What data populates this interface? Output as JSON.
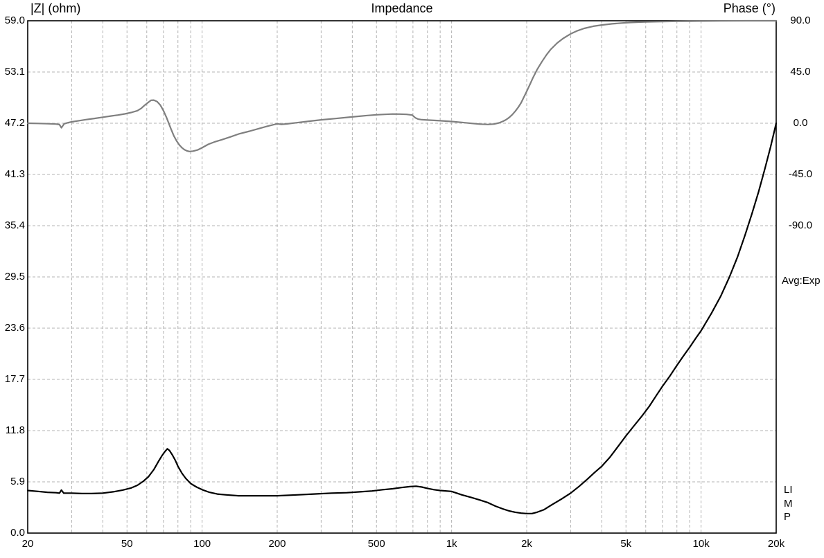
{
  "header": {
    "left_title": "|Z| (ohm)",
    "center_title": "Impedance",
    "right_title": "Phase (°)"
  },
  "right_margin": {
    "avg_label": "Avg:Exp",
    "watermark": "LIMP"
  },
  "colors": {
    "impedance_curve": "#000000",
    "phase_curve": "#7f7f7f",
    "grid": "#b3b3b3",
    "frame": "#000000",
    "background": "#ffffff",
    "text": "#000000"
  },
  "chart_data": {
    "type": "line",
    "title": "Impedance",
    "x_scale": "log",
    "grid": true,
    "freq_axis": {
      "min": 20,
      "max": 20000,
      "ticks": [
        {
          "f": 20,
          "label": "20"
        },
        {
          "f": 50,
          "label": "50"
        },
        {
          "f": 100,
          "label": "100"
        },
        {
          "f": 200,
          "label": "200"
        },
        {
          "f": 500,
          "label": "500"
        },
        {
          "f": 1000,
          "label": "1k"
        },
        {
          "f": 2000,
          "label": "2k"
        },
        {
          "f": 5000,
          "label": "5k"
        },
        {
          "f": 10000,
          "label": "10k"
        },
        {
          "f": 20000,
          "label": "20k"
        }
      ]
    },
    "z_axis": {
      "label": "|Z| (ohm)",
      "min": 0,
      "max": 59,
      "tick_labels": [
        "59.0",
        "53.1",
        "47.2",
        "41.3",
        "35.4",
        "29.5",
        "23.6",
        "17.7",
        "11.8",
        "5.9",
        "0.0"
      ]
    },
    "phase_axis": {
      "label": "Phase (°)",
      "max": 90,
      "deg_per_tick": 45,
      "tick_labels": [
        "90.0",
        "45.0",
        "0.0",
        "-45.0",
        "-90.0"
      ]
    },
    "series": [
      {
        "name": "impedance-magnitude",
        "unit": "ohm",
        "color": "#000000",
        "points": [
          [
            20,
            4.9
          ],
          [
            22,
            4.8
          ],
          [
            24,
            4.7
          ],
          [
            26,
            4.65
          ],
          [
            26.8,
            4.6
          ],
          [
            27.3,
            4.95
          ],
          [
            27.9,
            4.6
          ],
          [
            30,
            4.6
          ],
          [
            33,
            4.55
          ],
          [
            36,
            4.55
          ],
          [
            40,
            4.6
          ],
          [
            44,
            4.75
          ],
          [
            48,
            4.95
          ],
          [
            52,
            5.2
          ],
          [
            55,
            5.5
          ],
          [
            58,
            5.95
          ],
          [
            61,
            6.5
          ],
          [
            64,
            7.3
          ],
          [
            67,
            8.3
          ],
          [
            69,
            8.9
          ],
          [
            71,
            9.4
          ],
          [
            72.5,
            9.7
          ],
          [
            74,
            9.5
          ],
          [
            76,
            9.0
          ],
          [
            78,
            8.4
          ],
          [
            80,
            7.7
          ],
          [
            83,
            6.9
          ],
          [
            86,
            6.3
          ],
          [
            90,
            5.7
          ],
          [
            95,
            5.3
          ],
          [
            100,
            5.0
          ],
          [
            107,
            4.7
          ],
          [
            115,
            4.5
          ],
          [
            125,
            4.4
          ],
          [
            140,
            4.3
          ],
          [
            170,
            4.3
          ],
          [
            200,
            4.3
          ],
          [
            240,
            4.4
          ],
          [
            280,
            4.5
          ],
          [
            330,
            4.6
          ],
          [
            380,
            4.65
          ],
          [
            430,
            4.75
          ],
          [
            480,
            4.85
          ],
          [
            530,
            5.0
          ],
          [
            580,
            5.1
          ],
          [
            630,
            5.25
          ],
          [
            680,
            5.35
          ],
          [
            720,
            5.4
          ],
          [
            760,
            5.3
          ],
          [
            800,
            5.15
          ],
          [
            850,
            5.0
          ],
          [
            900,
            4.9
          ],
          [
            1000,
            4.8
          ],
          [
            1100,
            4.4
          ],
          [
            1200,
            4.1
          ],
          [
            1300,
            3.8
          ],
          [
            1400,
            3.5
          ],
          [
            1500,
            3.1
          ],
          [
            1600,
            2.8
          ],
          [
            1700,
            2.55
          ],
          [
            1800,
            2.4
          ],
          [
            1900,
            2.3
          ],
          [
            2000,
            2.25
          ],
          [
            2100,
            2.25
          ],
          [
            2200,
            2.4
          ],
          [
            2350,
            2.7
          ],
          [
            2500,
            3.2
          ],
          [
            2750,
            3.9
          ],
          [
            3000,
            4.6
          ],
          [
            3250,
            5.4
          ],
          [
            3500,
            6.2
          ],
          [
            3750,
            7.0
          ],
          [
            4000,
            7.7
          ],
          [
            4300,
            8.7
          ],
          [
            4600,
            9.8
          ],
          [
            5000,
            11.2
          ],
          [
            5400,
            12.4
          ],
          [
            5800,
            13.5
          ],
          [
            6200,
            14.6
          ],
          [
            6600,
            15.8
          ],
          [
            7000,
            16.9
          ],
          [
            7500,
            18.1
          ],
          [
            8000,
            19.3
          ],
          [
            8500,
            20.4
          ],
          [
            9000,
            21.4
          ],
          [
            9500,
            22.4
          ],
          [
            10000,
            23.3
          ],
          [
            11000,
            25.3
          ],
          [
            12000,
            27.3
          ],
          [
            13000,
            29.5
          ],
          [
            14000,
            31.8
          ],
          [
            15000,
            34.3
          ],
          [
            16000,
            36.8
          ],
          [
            17000,
            39.3
          ],
          [
            18000,
            41.9
          ],
          [
            19000,
            44.5
          ],
          [
            20000,
            47.2
          ]
        ]
      },
      {
        "name": "phase",
        "unit": "deg",
        "color": "#7f7f7f",
        "points": [
          [
            20,
            0
          ],
          [
            22,
            -0.2
          ],
          [
            24,
            -0.4
          ],
          [
            26,
            -0.7
          ],
          [
            26.8,
            -1.2
          ],
          [
            27.3,
            -4
          ],
          [
            28,
            -0.5
          ],
          [
            29,
            0.5
          ],
          [
            30,
            1.2
          ],
          [
            32,
            2.2
          ],
          [
            34,
            3.1
          ],
          [
            37,
            4.2
          ],
          [
            40,
            5.3
          ],
          [
            43,
            6.3
          ],
          [
            46,
            7.2
          ],
          [
            49,
            8.2
          ],
          [
            52,
            9.4
          ],
          [
            55,
            11
          ],
          [
            57,
            13
          ],
          [
            59,
            16
          ],
          [
            61,
            18.5
          ],
          [
            62.5,
            20.2
          ],
          [
            64,
            20.3
          ],
          [
            66,
            19
          ],
          [
            68,
            16
          ],
          [
            70,
            11
          ],
          [
            72,
            5
          ],
          [
            73.5,
            0
          ],
          [
            75,
            -5
          ],
          [
            77,
            -11
          ],
          [
            79,
            -15.5
          ],
          [
            81,
            -19
          ],
          [
            83,
            -21.5
          ],
          [
            85,
            -23.2
          ],
          [
            87,
            -24.3
          ],
          [
            89,
            -24.8
          ],
          [
            92,
            -24.5
          ],
          [
            96,
            -23.5
          ],
          [
            100,
            -21.5
          ],
          [
            106,
            -18.5
          ],
          [
            112,
            -16.5
          ],
          [
            120,
            -14.5
          ],
          [
            130,
            -12
          ],
          [
            140,
            -9.5
          ],
          [
            155,
            -7
          ],
          [
            170,
            -4.5
          ],
          [
            185,
            -2.3
          ],
          [
            200,
            -0.5
          ],
          [
            208,
            -1
          ],
          [
            218,
            -0.6
          ],
          [
            240,
            0.5
          ],
          [
            270,
            1.8
          ],
          [
            300,
            3
          ],
          [
            340,
            4.1
          ],
          [
            380,
            5.1
          ],
          [
            420,
            6
          ],
          [
            460,
            6.8
          ],
          [
            500,
            7.4
          ],
          [
            540,
            7.8
          ],
          [
            580,
            8.1
          ],
          [
            620,
            8.05
          ],
          [
            660,
            7.8
          ],
          [
            695,
            7.2
          ],
          [
            715,
            4.8
          ],
          [
            735,
            3.6
          ],
          [
            760,
            3.1
          ],
          [
            800,
            2.8
          ],
          [
            850,
            2.5
          ],
          [
            900,
            2.2
          ],
          [
            1000,
            1.5
          ],
          [
            1100,
            0.7
          ],
          [
            1200,
            -0.1
          ],
          [
            1300,
            -0.8
          ],
          [
            1400,
            -1.1
          ],
          [
            1480,
            -0.7
          ],
          [
            1550,
            0.3
          ],
          [
            1600,
            1.5
          ],
          [
            1650,
            3
          ],
          [
            1700,
            5
          ],
          [
            1750,
            7.5
          ],
          [
            1800,
            10.5
          ],
          [
            1850,
            14
          ],
          [
            1900,
            18
          ],
          [
            1950,
            23
          ],
          [
            2000,
            28
          ],
          [
            2060,
            34
          ],
          [
            2120,
            40
          ],
          [
            2200,
            47
          ],
          [
            2300,
            54
          ],
          [
            2400,
            60
          ],
          [
            2500,
            65
          ],
          [
            2650,
            70.5
          ],
          [
            2800,
            74.5
          ],
          [
            3000,
            78.5
          ],
          [
            3200,
            81.3
          ],
          [
            3400,
            83.3
          ],
          [
            3700,
            85.2
          ],
          [
            4000,
            86.3
          ],
          [
            4400,
            87.3
          ],
          [
            4800,
            88
          ],
          [
            5200,
            88.5
          ],
          [
            5600,
            88.8
          ],
          [
            6000,
            89
          ],
          [
            7000,
            89.3
          ],
          [
            8000,
            89.5
          ],
          [
            9000,
            89.65
          ],
          [
            10000,
            89.75
          ],
          [
            12000,
            89.9
          ],
          [
            15000,
            90
          ],
          [
            17000,
            90
          ],
          [
            20000,
            90
          ]
        ]
      }
    ]
  }
}
